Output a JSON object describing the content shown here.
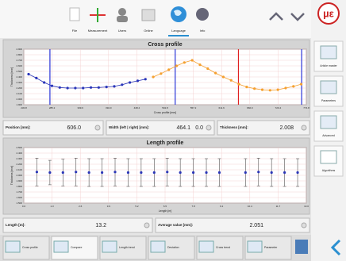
{
  "toolbar": {
    "items": [
      "File",
      "Measurement",
      "Users",
      "Online",
      "Language",
      "Info"
    ]
  },
  "brand": "µε",
  "sidebar": {
    "items": [
      "Article master",
      "Parameters",
      "Advanced",
      "Algorithms"
    ]
  },
  "cross_profile": {
    "type": "line",
    "title": "Cross profile",
    "x_label": "Cross profile [mm]",
    "y_label": "Thickness [mm]",
    "xlim": [
      230.8,
      774.8
    ],
    "xticks": [
      230.8,
      285.2,
      339.6,
      {
        "value": 394,
        "label": "394.0"
      },
      448.4,
      502.8,
      557.2,
      611.6,
      {
        "value": 666,
        "label": "666.0"
      },
      720.4,
      774.8
    ],
    "ylim": [
      1.9,
      2.9
    ],
    "yticks": [
      {
        "value": 1.9,
        "label": "1.900"
      },
      {
        "value": 2.0,
        "label": "2.000"
      },
      {
        "value": 2.1,
        "label": "2.100"
      },
      {
        "value": 2.2,
        "label": "2.200"
      },
      {
        "value": 2.3,
        "label": "2.300"
      },
      {
        "value": 2.4,
        "label": "2.400"
      },
      {
        "value": 2.5,
        "label": "2.500"
      },
      {
        "value": 2.6,
        "label": "2.600"
      },
      {
        "value": 2.7,
        "label": "2.700"
      },
      {
        "value": 2.8,
        "label": "2.800"
      },
      {
        "value": 2.9,
        "label": "2.900"
      }
    ],
    "grid": true,
    "series": [
      {
        "color": "#2a35b8",
        "x": [
          240,
          255,
          270,
          285,
          300,
          315,
          330,
          345,
          360,
          375,
          390,
          405,
          420,
          435,
          450,
          465
        ],
        "values": [
          2.45,
          2.38,
          2.3,
          2.24,
          2.21,
          2.2,
          2.2,
          2.2,
          2.21,
          2.21,
          2.22,
          2.23,
          2.26,
          2.3,
          2.33,
          2.36
        ]
      },
      {
        "color": "#f5a030",
        "x": [
          480,
          495,
          510,
          525,
          540,
          555,
          570,
          585,
          600,
          615,
          630,
          645,
          660,
          675,
          690,
          705,
          720,
          735,
          750,
          765
        ],
        "values": [
          2.4,
          2.46,
          2.53,
          2.6,
          2.66,
          2.7,
          2.62,
          2.55,
          2.47,
          2.4,
          2.34,
          2.27,
          2.22,
          2.19,
          2.17,
          2.16,
          2.17,
          2.2,
          2.23,
          2.27
        ]
      }
    ],
    "markers": [
      {
        "x": 281.1,
        "color": "#2a35d8"
      },
      {
        "x": 522.3,
        "color": "#2a35d8"
      },
      {
        "x": 644.1,
        "color": "#e02020"
      },
      {
        "x": 765.8,
        "color": "#2a35d8"
      }
    ]
  },
  "fields_top": {
    "position": {
      "label": "Position [mm]:",
      "value": "606.0"
    },
    "width": {
      "label": "Width (left | right) [mm]:",
      "value": "464.1",
      "value2": "0.0"
    },
    "thickness": {
      "label": "Thickness [mm]:",
      "value": "2.008"
    }
  },
  "length_profile": {
    "type": "errorbar",
    "title": "Length profile",
    "x_label": "Length [m]",
    "y_label": "Thickness [mm]",
    "xlim": [
      0,
      13
    ],
    "xticks": [
      {
        "value": 0,
        "label": "0.0"
      },
      1.3,
      2.6,
      3.9,
      5.2,
      6.5,
      7.8,
      9.1,
      10.4,
      11.7,
      {
        "value": 13,
        "label": "13.0"
      }
    ],
    "ylim": [
      1.5,
      2.5
    ],
    "yticks": [
      {
        "value": 1.5,
        "label": "1.500"
      },
      {
        "value": 1.6,
        "label": "1.600"
      },
      {
        "value": 1.7,
        "label": "1.700"
      },
      {
        "value": 1.8,
        "label": "1.800"
      },
      {
        "value": 1.9,
        "label": "1.900"
      },
      {
        "value": 2.0,
        "label": "2.000"
      },
      {
        "value": 2.1,
        "label": "2.100"
      },
      {
        "value": 2.2,
        "label": "2.200"
      },
      {
        "value": 2.3,
        "label": "2.300"
      },
      {
        "value": 2.4,
        "label": "2.400"
      },
      {
        "value": 2.5,
        "label": "2.500"
      }
    ],
    "grid": true,
    "series": [
      {
        "color": "#2a35b8",
        "x": [
          0.6,
          1.2,
          1.8,
          2.4,
          3.0,
          3.6,
          4.2,
          4.8,
          5.4,
          6.0,
          6.6,
          7.2,
          7.8,
          8.4,
          9.0,
          10.2,
          10.8,
          11.4,
          12.0,
          12.6
        ],
        "values": [
          2.06,
          2.05,
          2.05,
          2.06,
          2.05,
          2.05,
          2.06,
          2.05,
          2.05,
          2.05,
          2.06,
          2.05,
          2.05,
          2.05,
          2.05,
          2.05,
          2.06,
          2.05,
          2.05,
          2.05
        ],
        "errors": [
          0.25,
          0.22,
          0.24,
          0.25,
          0.25,
          0.25,
          0.25,
          0.25,
          0.25,
          0.25,
          0.25,
          0.25,
          0.25,
          0.25,
          0.25,
          0.25,
          0.25,
          0.25,
          0.25,
          0.25
        ]
      }
    ]
  },
  "fields_bottom": {
    "length": {
      "label": "Length [m]:",
      "value": "13.2"
    },
    "average": {
      "label": "Average value [mm]:",
      "value": "2.051"
    }
  },
  "tabs": [
    "Cross profile",
    "Compare",
    "Length trend",
    "Deviation",
    "Cross trend",
    "Parameter"
  ]
}
